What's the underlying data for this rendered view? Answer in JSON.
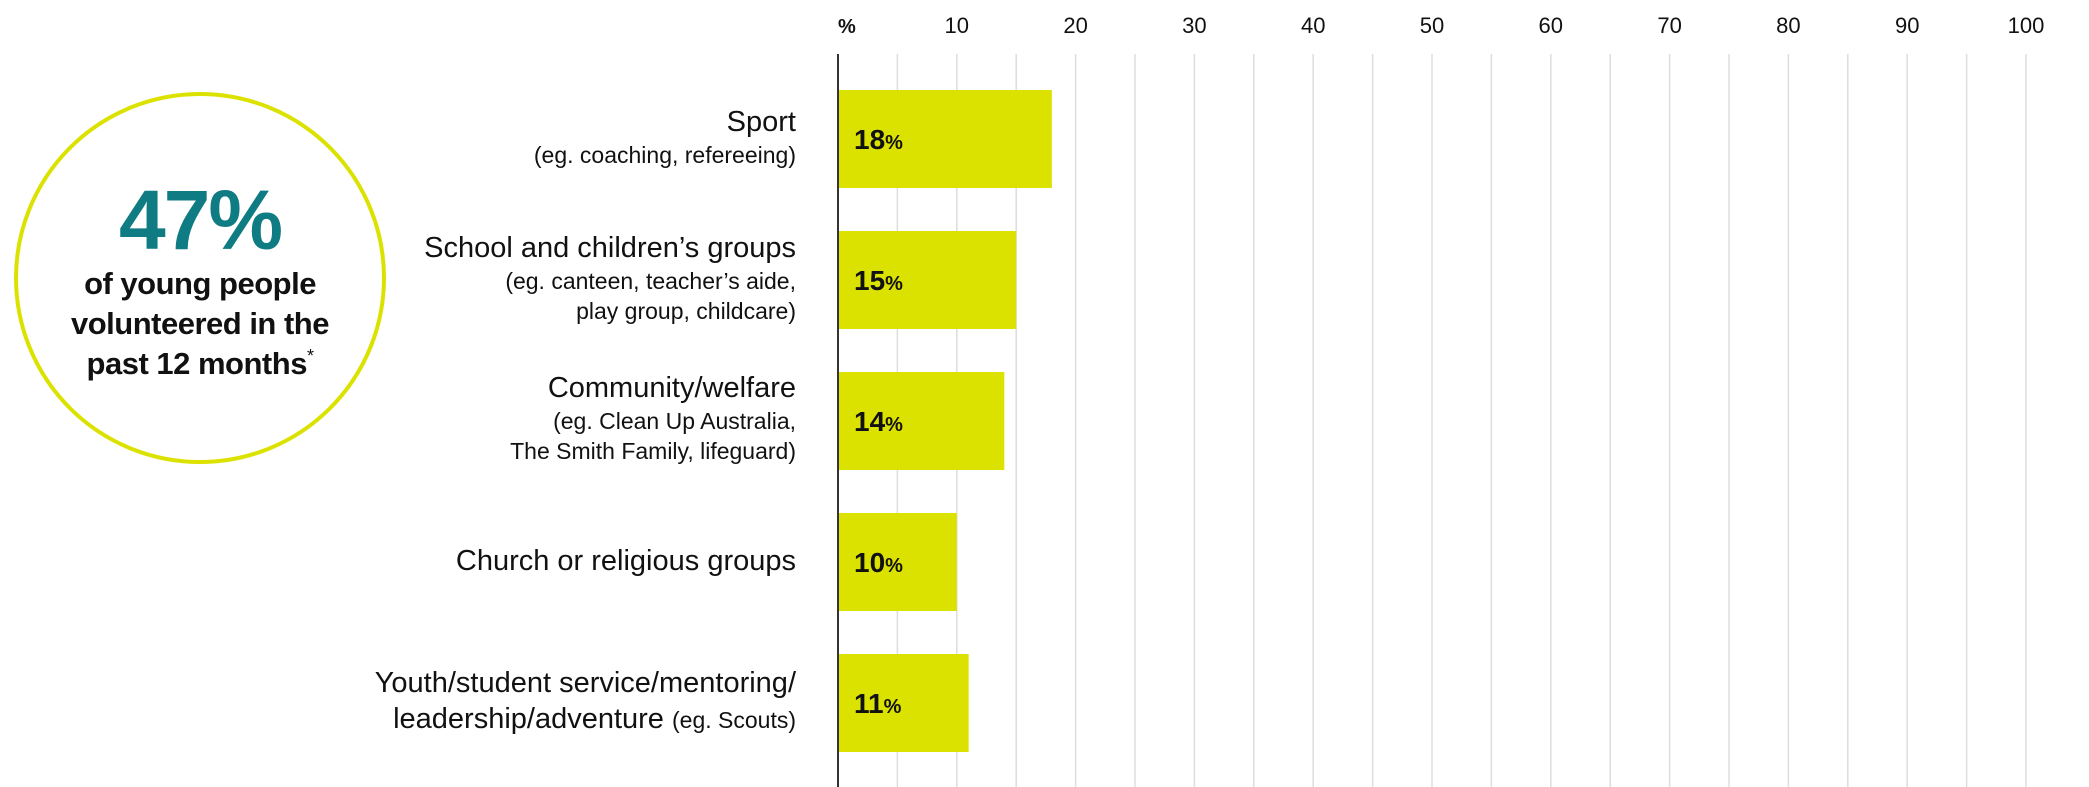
{
  "badge": {
    "value": "47%",
    "line1": "of young people",
    "line2": "volunteered in the",
    "line3": "past 12 months",
    "footnote_mark": "*"
  },
  "colors": {
    "bar": "#dce200",
    "badge_value": "#0f7b82",
    "badge_border": "#dce200",
    "grid": "#dddddd",
    "axis": "#333333"
  },
  "categories": [
    {
      "name": "Sport",
      "example": "(eg. coaching, refereeing)"
    },
    {
      "name": "School and children’s groups",
      "example_line1": "(eg. canteen, teacher’s aide,",
      "example_line2": "play group, childcare)"
    },
    {
      "name": "Community/welfare",
      "example_line1": "(eg. Clean Up Australia,",
      "example_line2": "The Smith Family, lifeguard)"
    },
    {
      "name": "Church or religious groups"
    },
    {
      "name_line1": "Youth/student service/mentoring/",
      "name_line2": "leadership/adventure",
      "example": "(eg. Scouts)"
    }
  ],
  "chart_data": {
    "type": "bar",
    "orientation": "horizontal",
    "unit_label": "%",
    "categories": [
      "Sport (eg. coaching, refereeing)",
      "School and children’s groups (eg. canteen, teacher’s aide, play group, childcare)",
      "Community/welfare (eg. Clean Up Australia, The Smith Family, lifeguard)",
      "Church or religious groups",
      "Youth/student service/mentoring/leadership/adventure (eg. Scouts)"
    ],
    "values": [
      18,
      15,
      14,
      10,
      11
    ],
    "xlim": [
      0,
      100
    ],
    "ticks": [
      10,
      20,
      30,
      40,
      50,
      60,
      70,
      80,
      90,
      100
    ],
    "tick_labels": [
      "10",
      "20",
      "30",
      "40",
      "50",
      "60",
      "70",
      "80",
      "90",
      "100"
    ],
    "value_labels": [
      "18",
      "15",
      "14",
      "10",
      "11"
    ],
    "value_suffix": "%",
    "grid": true,
    "axis_position": "top"
  }
}
